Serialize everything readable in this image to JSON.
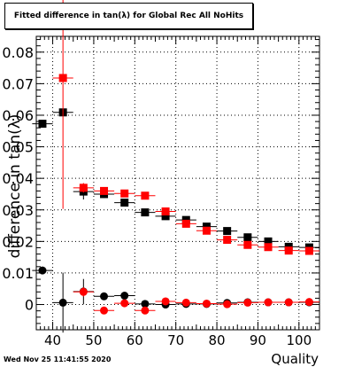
{
  "title": "Fitted difference in tan(λ) for Global Rec All NoHits",
  "datestamp": "Wed Nov 25 11:41:55 2020",
  "chart_data": {
    "type": "scatter",
    "xlabel": "Quality",
    "ylabel": "difference in tan(λ)",
    "xlim": [
      36,
      105
    ],
    "ylim": [
      -0.008,
      0.085
    ],
    "x_ticks": [
      40,
      50,
      60,
      70,
      80,
      90,
      100
    ],
    "x_tick_labels": [
      "40",
      "50",
      "60",
      "70",
      "80",
      "90",
      "100"
    ],
    "y_ticks": [
      0,
      0.01,
      0.02,
      0.03,
      0.04,
      0.05,
      0.06,
      0.07,
      0.08
    ],
    "y_tick_labels": [
      "0",
      "0.01",
      "0.02",
      "0.03",
      "0.04",
      "0.05",
      "0.06",
      "0.07",
      "0.08"
    ],
    "grid": true,
    "series": [
      {
        "color": "#000000",
        "marker": "square",
        "points": [
          {
            "x": 37.5,
            "y": 0.0573,
            "yerr": 0.0
          },
          {
            "x": 42.5,
            "y": 0.0609,
            "yerr": 0.0
          },
          {
            "x": 47.5,
            "y": 0.0358,
            "yerr": 0.0025
          },
          {
            "x": 52.5,
            "y": 0.035,
            "yerr": 0.0012
          },
          {
            "x": 57.5,
            "y": 0.0323,
            "yerr": 0.0007
          },
          {
            "x": 62.5,
            "y": 0.0292,
            "yerr": 0.0005
          },
          {
            "x": 67.5,
            "y": 0.028,
            "yerr": 0.0004
          },
          {
            "x": 72.5,
            "y": 0.0268,
            "yerr": 0.0003
          },
          {
            "x": 77.5,
            "y": 0.0247,
            "yerr": 0.0003
          },
          {
            "x": 82.5,
            "y": 0.0233,
            "yerr": 0.0002
          },
          {
            "x": 87.5,
            "y": 0.0213,
            "yerr": 0.0002
          },
          {
            "x": 92.5,
            "y": 0.02,
            "yerr": 0.0002
          },
          {
            "x": 97.5,
            "y": 0.0183,
            "yerr": 0.0002
          },
          {
            "x": 102.5,
            "y": 0.0181,
            "yerr": 0.0002
          }
        ]
      },
      {
        "color": "#ff0000",
        "marker": "square",
        "points": [
          {
            "x": 42.5,
            "y": 0.0718,
            "yerr": 0.0415
          },
          {
            "x": 47.5,
            "y": 0.037,
            "yerr": 0.0015
          },
          {
            "x": 52.5,
            "y": 0.036,
            "yerr": 0.001
          },
          {
            "x": 57.5,
            "y": 0.0352,
            "yerr": 0.0007
          },
          {
            "x": 62.5,
            "y": 0.0345,
            "yerr": 0.0005
          },
          {
            "x": 67.5,
            "y": 0.0295,
            "yerr": 0.0004
          },
          {
            "x": 72.5,
            "y": 0.0256,
            "yerr": 0.0003
          },
          {
            "x": 77.5,
            "y": 0.0234,
            "yerr": 0.0003
          },
          {
            "x": 82.5,
            "y": 0.0205,
            "yerr": 0.0002
          },
          {
            "x": 87.5,
            "y": 0.0189,
            "yerr": 0.0002
          },
          {
            "x": 92.5,
            "y": 0.0182,
            "yerr": 0.0002
          },
          {
            "x": 97.5,
            "y": 0.0171,
            "yerr": 0.0002
          },
          {
            "x": 102.5,
            "y": 0.017,
            "yerr": 0.0002
          }
        ]
      },
      {
        "color": "#000000",
        "marker": "circle",
        "points": [
          {
            "x": 37.5,
            "y": 0.0108,
            "yerr": 0.0
          },
          {
            "x": 42.5,
            "y": 0.0006,
            "yerr": 0.0095
          },
          {
            "x": 47.5,
            "y": 0.0041,
            "yerr": 0.004
          },
          {
            "x": 52.5,
            "y": 0.0026,
            "yerr": 0.0012
          },
          {
            "x": 57.5,
            "y": 0.0028,
            "yerr": 0.0008
          },
          {
            "x": 62.5,
            "y": 0.0002,
            "yerr": 0.0005
          },
          {
            "x": 67.5,
            "y": 0.0,
            "yerr": 0.0004
          },
          {
            "x": 72.5,
            "y": 0.0002,
            "yerr": 0.0003
          },
          {
            "x": 77.5,
            "y": 0.0002,
            "yerr": 0.0003
          },
          {
            "x": 82.5,
            "y": 0.0005,
            "yerr": 0.0002
          },
          {
            "x": 87.5,
            "y": 0.0007,
            "yerr": 0.0002
          },
          {
            "x": 92.5,
            "y": 0.0007,
            "yerr": 0.0002
          },
          {
            "x": 97.5,
            "y": 0.0007,
            "yerr": 0.0002
          },
          {
            "x": 102.5,
            "y": 0.0007,
            "yerr": 0.0002
          }
        ]
      },
      {
        "color": "#ff0000",
        "marker": "circle",
        "points": [
          {
            "x": 47.5,
            "y": 0.004,
            "yerr": 0.0015
          },
          {
            "x": 52.5,
            "y": -0.0019,
            "yerr": 0.001
          },
          {
            "x": 57.5,
            "y": 0.0004,
            "yerr": 0.0007
          },
          {
            "x": 62.5,
            "y": -0.0019,
            "yerr": 0.0005
          },
          {
            "x": 67.5,
            "y": 0.001,
            "yerr": 0.0004
          },
          {
            "x": 72.5,
            "y": 0.0006,
            "yerr": 0.0003
          },
          {
            "x": 77.5,
            "y": 0.0003,
            "yerr": 0.0003
          },
          {
            "x": 82.5,
            "y": 0.0001,
            "yerr": 0.0002
          },
          {
            "x": 87.5,
            "y": 0.0006,
            "yerr": 0.0002
          },
          {
            "x": 92.5,
            "y": 0.0007,
            "yerr": 0.0002
          },
          {
            "x": 97.5,
            "y": 0.0007,
            "yerr": 0.0002
          },
          {
            "x": 102.5,
            "y": 0.0008,
            "yerr": 0.0002
          }
        ]
      }
    ]
  }
}
